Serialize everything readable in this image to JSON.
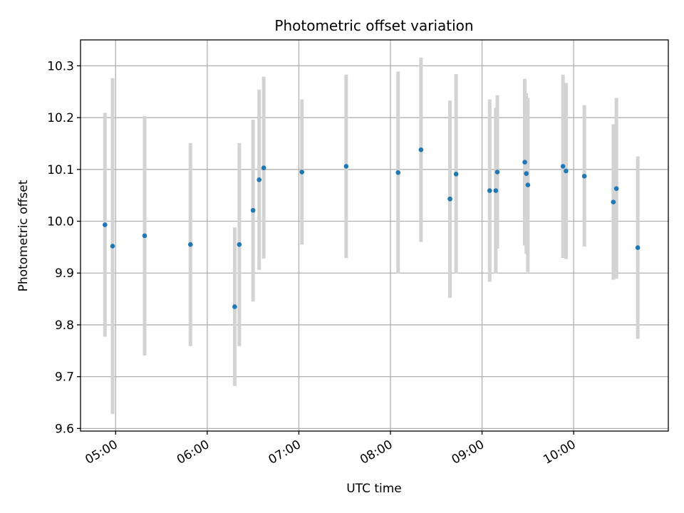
{
  "chart_data": {
    "type": "scatter",
    "title": "Photometric offset variation",
    "xlabel": "UTC time",
    "ylabel": "Photometric offset",
    "xlim": [
      "04:37",
      "11:02"
    ],
    "ylim": [
      9.595,
      10.35
    ],
    "grid": true,
    "x_ticks": [
      "05:00",
      "06:00",
      "07:00",
      "08:00",
      "09:00",
      "10:00"
    ],
    "y_ticks": [
      "9.6",
      "9.7",
      "9.8",
      "9.9",
      "10.0",
      "10.1",
      "10.2",
      "10.3"
    ],
    "colors": {
      "point": "#1f77b4",
      "errorbar": "#d3d3d3",
      "grid": "#b0b0b0"
    },
    "series": [
      {
        "points": [
          {
            "x": "04:53",
            "y": 9.993,
            "ylo": 9.777,
            "yhi": 10.209
          },
          {
            "x": "04:58",
            "y": 9.952,
            "ylo": 9.628,
            "yhi": 10.276
          },
          {
            "x": "05:19",
            "y": 9.972,
            "ylo": 9.741,
            "yhi": 10.203
          },
          {
            "x": "05:49",
            "y": 9.955,
            "ylo": 9.759,
            "yhi": 10.151
          },
          {
            "x": "06:18",
            "y": 9.835,
            "ylo": 9.682,
            "yhi": 9.988
          },
          {
            "x": "06:21",
            "y": 9.955,
            "ylo": 9.759,
            "yhi": 10.151
          },
          {
            "x": "06:30",
            "y": 10.021,
            "ylo": 9.845,
            "yhi": 10.196
          },
          {
            "x": "06:34",
            "y": 10.08,
            "ylo": 9.906,
            "yhi": 10.254
          },
          {
            "x": "06:37",
            "y": 10.103,
            "ylo": 9.928,
            "yhi": 10.279
          },
          {
            "x": "07:02",
            "y": 10.095,
            "ylo": 9.955,
            "yhi": 10.235
          },
          {
            "x": "07:31",
            "y": 10.106,
            "ylo": 9.929,
            "yhi": 10.283
          },
          {
            "x": "08:05",
            "y": 10.094,
            "ylo": 9.899,
            "yhi": 10.289
          },
          {
            "x": "08:20",
            "y": 10.138,
            "ylo": 9.96,
            "yhi": 10.316
          },
          {
            "x": "08:39",
            "y": 10.043,
            "ylo": 9.852,
            "yhi": 10.233
          },
          {
            "x": "08:43",
            "y": 10.091,
            "ylo": 9.899,
            "yhi": 10.284
          },
          {
            "x": "09:05",
            "y": 10.059,
            "ylo": 9.883,
            "yhi": 10.235
          },
          {
            "x": "09:09",
            "y": 10.059,
            "ylo": 9.899,
            "yhi": 10.219
          },
          {
            "x": "09:10",
            "y": 10.095,
            "ylo": 9.947,
            "yhi": 10.243
          },
          {
            "x": "09:28",
            "y": 10.114,
            "ylo": 9.953,
            "yhi": 10.275
          },
          {
            "x": "09:29",
            "y": 10.092,
            "ylo": 9.937,
            "yhi": 10.247
          },
          {
            "x": "09:30",
            "y": 10.07,
            "ylo": 9.902,
            "yhi": 10.238
          },
          {
            "x": "09:53",
            "y": 10.106,
            "ylo": 9.929,
            "yhi": 10.283
          },
          {
            "x": "09:55",
            "y": 10.097,
            "ylo": 9.927,
            "yhi": 10.267
          },
          {
            "x": "10:07",
            "y": 10.087,
            "ylo": 9.951,
            "yhi": 10.224
          },
          {
            "x": "10:26",
            "y": 10.037,
            "ylo": 9.887,
            "yhi": 10.187
          },
          {
            "x": "10:28",
            "y": 10.063,
            "ylo": 9.889,
            "yhi": 10.238
          },
          {
            "x": "10:42",
            "y": 9.949,
            "ylo": 9.773,
            "yhi": 10.125
          }
        ]
      }
    ]
  }
}
